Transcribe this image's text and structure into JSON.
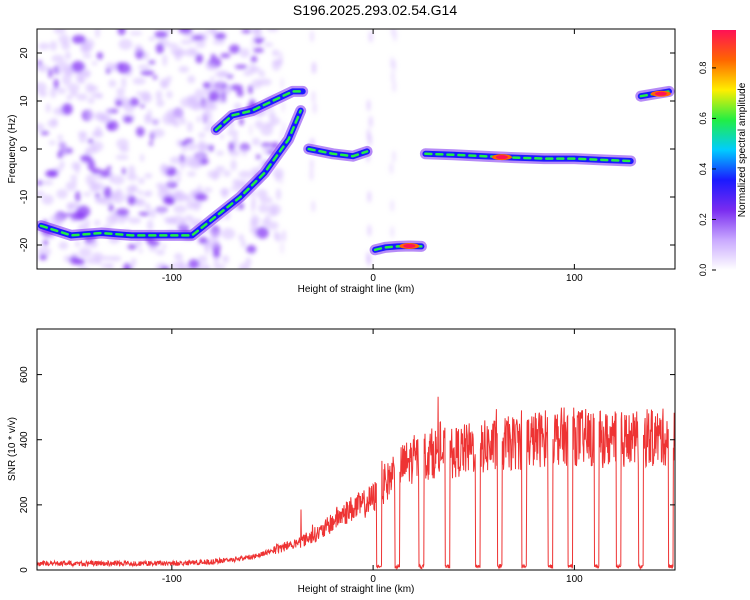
{
  "title": "S196.2025.293.02.54.G14",
  "colors": {
    "line": "#ee3333",
    "colormap": [
      "#ffffff",
      "#e9d5ff",
      "#7a2cf0",
      "#1a1aff",
      "#00ccff",
      "#22ee44",
      "#ffee00",
      "#ff6600",
      "#ff1155"
    ]
  },
  "chart_data": [
    {
      "type": "heatmap",
      "title": "S196.2025.293.02.54.G14",
      "xlabel": "Height of straight line (km)",
      "ylabel": "Frequency (Hz)",
      "xlim": [
        -167,
        150
      ],
      "ylim": [
        -25,
        25
      ],
      "xticks": [
        -100,
        0,
        100
      ],
      "yticks": [
        -20,
        -10,
        0,
        10,
        20
      ],
      "colorbar": {
        "label": "Normalized spectral amplitude",
        "range": [
          0,
          0.95
        ],
        "ticks": [
          "0.0",
          "0.2",
          "0.4",
          "0.6",
          "0.8"
        ]
      },
      "ridges": [
        {
          "x": [
            -165,
            -150,
            -135,
            -120,
            -105,
            -90,
            -78,
            -66,
            -54,
            -42,
            -36
          ],
          "y": [
            -16,
            -18,
            -17.5,
            -18,
            -18,
            -18,
            -14,
            -10,
            -5,
            2,
            8
          ]
        },
        {
          "x": [
            -78,
            -70,
            -60,
            -50,
            -40,
            -35
          ],
          "y": [
            4,
            7,
            8,
            10,
            12,
            12
          ]
        },
        {
          "x": [
            -32,
            -20,
            -10,
            -3
          ],
          "y": [
            0,
            -1,
            -1.5,
            -0.5
          ]
        },
        {
          "x": [
            1,
            6,
            12,
            18,
            24
          ],
          "y": [
            -21,
            -20.5,
            -20.3,
            -20.2,
            -20.3
          ]
        },
        {
          "x": [
            26,
            40,
            55,
            70,
            85,
            100,
            115,
            128
          ],
          "y": [
            -1,
            -1.2,
            -1.5,
            -1.8,
            -2,
            -2,
            -2.3,
            -2.5
          ]
        },
        {
          "x": [
            133,
            140,
            147
          ],
          "y": [
            11,
            11.5,
            12
          ]
        }
      ]
    },
    {
      "type": "line",
      "xlabel": "Height of straight line (km)",
      "ylabel": "SNR (10 * v/v)",
      "xlim": [
        -167,
        150
      ],
      "ylim": [
        0,
        740
      ],
      "xticks": [
        -100,
        0,
        100
      ],
      "yticks": [
        0,
        200,
        400,
        600
      ],
      "trend": {
        "x": [
          -167,
          -100,
          -80,
          -60,
          -45,
          -35,
          -25,
          -18,
          -10,
          -5,
          0,
          5,
          10,
          20,
          30,
          40,
          50,
          60,
          75,
          90,
          100,
          115,
          130,
          150
        ],
        "y": [
          20,
          20,
          25,
          40,
          70,
          90,
          120,
          160,
          190,
          200,
          220,
          250,
          300,
          340,
          360,
          360,
          375,
          380,
          395,
          410,
          410,
          400,
          400,
          410
        ]
      },
      "dropouts_x": [
        3,
        12,
        24,
        37,
        52,
        63,
        75,
        88,
        98,
        111,
        122,
        133,
        148
      ]
    }
  ]
}
